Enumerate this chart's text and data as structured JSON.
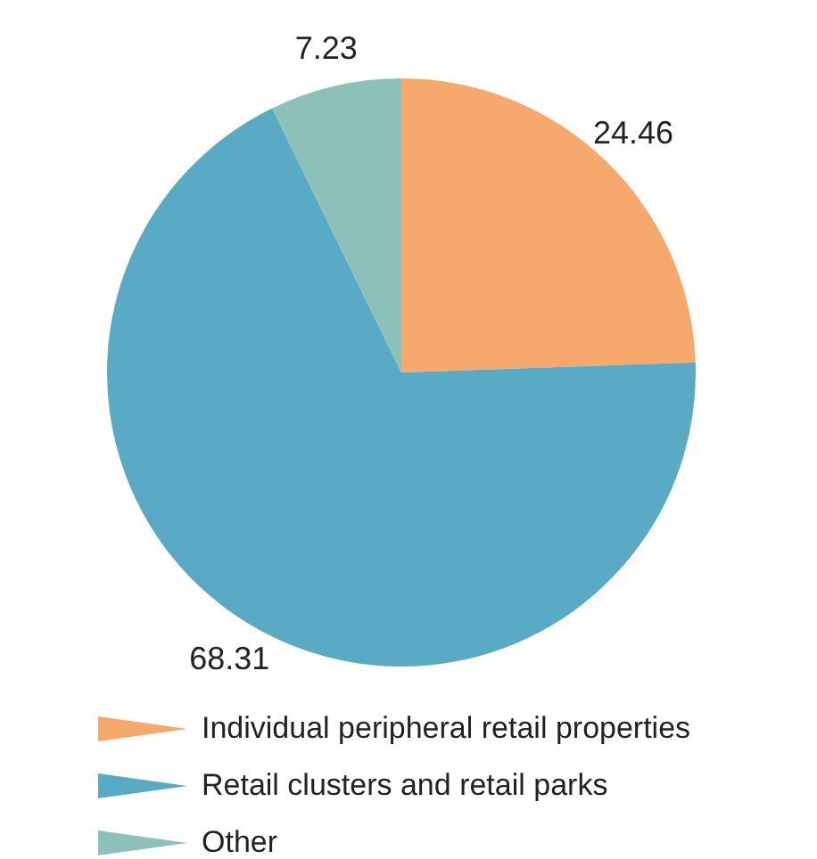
{
  "chart_data": {
    "type": "pie",
    "categories": [
      "Individual peripheral retail properties",
      "Retail clusters and retail parks",
      "Other"
    ],
    "values": [
      24.46,
      68.31,
      7.23
    ],
    "colors": [
      "#f7a86d",
      "#59abc5",
      "#8cc1b9"
    ],
    "data_labels": true,
    "legend": "bottom"
  }
}
